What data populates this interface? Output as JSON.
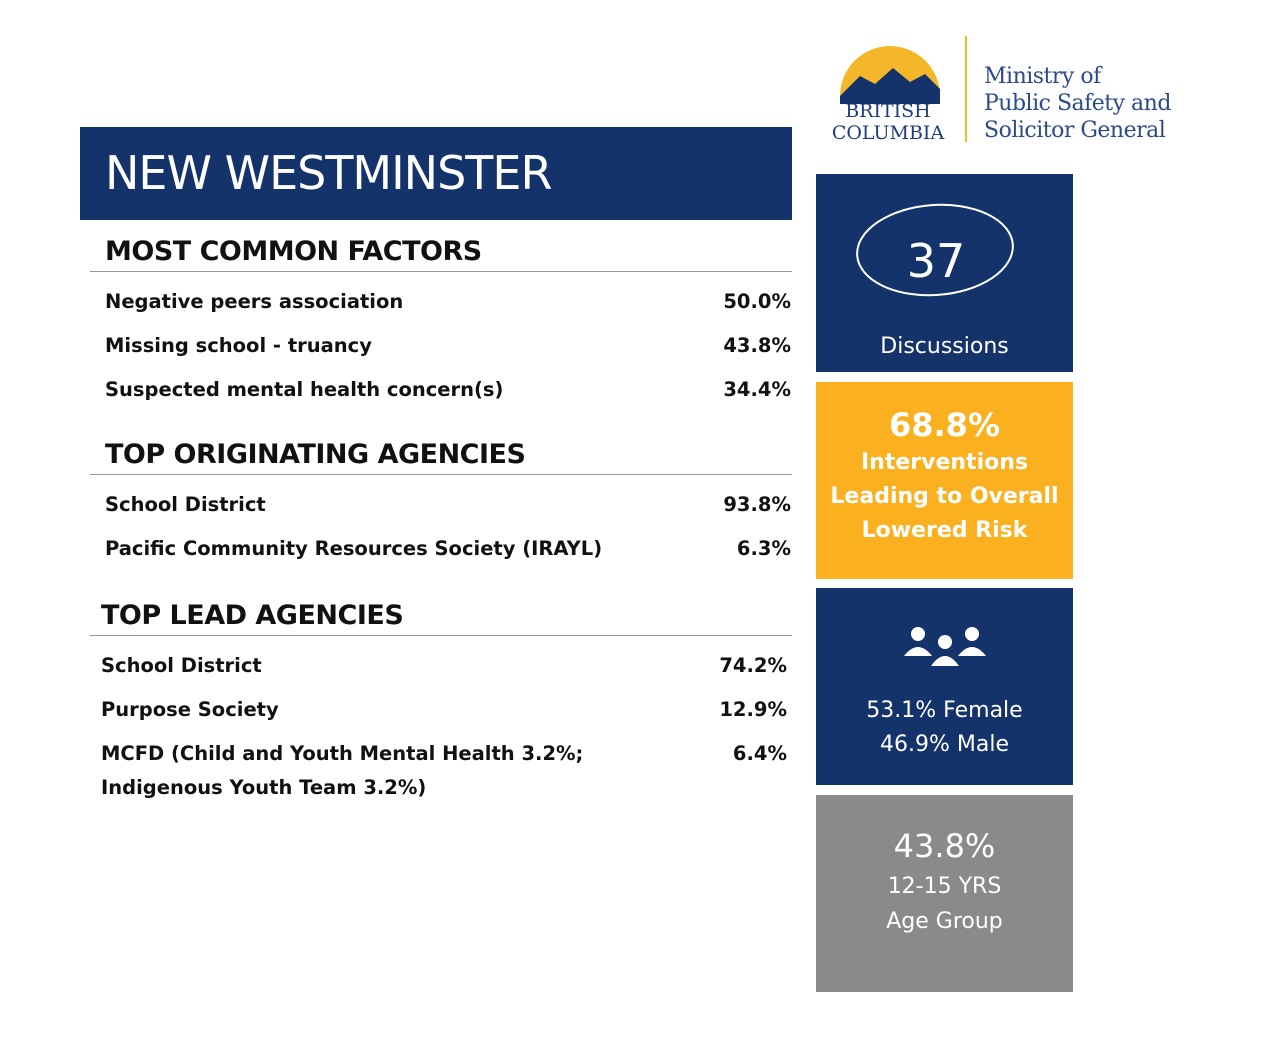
{
  "logo": {
    "province": [
      "BRITISH",
      "COLUMBIA"
    ],
    "ministry": [
      "Ministry of",
      "Public Safety and",
      "Solicitor General"
    ]
  },
  "title": "NEW WESTMINSTER",
  "sections": [
    {
      "heading": "MOST COMMON FACTORS",
      "rows": [
        {
          "label": [
            "Negative peers association"
          ],
          "value": "50.0%"
        },
        {
          "label": [
            "Missing school - truancy"
          ],
          "value": "43.8%"
        },
        {
          "label": [
            "Suspected mental health concern(s)"
          ],
          "value": "34.4%"
        }
      ]
    },
    {
      "heading": "TOP ORIGINATING AGENCIES",
      "rows": [
        {
          "label": [
            "School District"
          ],
          "value": "93.8%"
        },
        {
          "label": [
            "Pacific Community Resources Society (IRAYL)"
          ],
          "value": "6.3%"
        }
      ]
    },
    {
      "heading": "TOP LEAD AGENCIES",
      "rows": [
        {
          "label": [
            "School District"
          ],
          "value": "74.2%"
        },
        {
          "label": [
            "Purpose Society"
          ],
          "value": "12.9%"
        },
        {
          "label": [
            "MCFD (Child and Youth Mental Health 3.2%;",
            "Indigenous Youth Team 3.2%)"
          ],
          "value": "6.4%"
        }
      ]
    }
  ],
  "stats": {
    "discussions": {
      "value": "37",
      "label": "Discussions"
    },
    "interventions": {
      "value": "68.8%",
      "label": [
        "Interventions",
        "Leading to Overall",
        "Lowered Risk"
      ]
    },
    "gender": {
      "lines": [
        "53.1% Female",
        "46.9% Male"
      ]
    },
    "age": {
      "value": "43.8%",
      "lines": [
        "12-15 YRS",
        "Age Group"
      ]
    }
  }
}
